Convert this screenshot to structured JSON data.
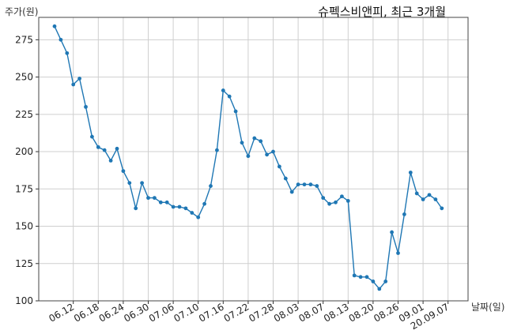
{
  "chart_data": {
    "type": "line",
    "title": "슈펙스비앤피, 최근 3개월",
    "ylabel": "주가(원)",
    "xlabel": "날짜(일)",
    "ylim": [
      100,
      290
    ],
    "yticks": [
      100,
      125,
      150,
      175,
      200,
      225,
      250,
      275
    ],
    "grid": true,
    "x_tick_labels": [
      "06.12",
      "06.18",
      "06.24",
      "06.30",
      "07.06",
      "07.10",
      "07.16",
      "07.22",
      "07.28",
      "08.03",
      "08.07",
      "08.13",
      "08.20",
      "08.26",
      "09.01",
      "20.09.07"
    ],
    "x_tick_indices": [
      3,
      7,
      11,
      15,
      19,
      23,
      27,
      31,
      35,
      39,
      43,
      47,
      51,
      55,
      59,
      63
    ],
    "color": "#1f77b4",
    "series": [
      {
        "values": [
          284,
          275,
          266,
          245,
          249,
          230,
          210,
          203,
          201,
          194,
          202,
          187,
          179,
          162,
          179,
          169,
          169,
          166,
          166,
          163,
          163,
          162,
          159,
          156,
          165,
          177,
          201,
          241,
          237,
          227,
          206,
          197,
          209,
          207,
          198,
          200,
          190,
          182,
          173,
          178,
          178,
          178,
          177,
          169,
          165,
          166,
          170,
          167,
          117,
          116,
          116,
          113,
          108,
          113,
          146,
          132,
          158,
          186,
          172,
          168,
          171,
          168,
          162
        ]
      }
    ]
  }
}
